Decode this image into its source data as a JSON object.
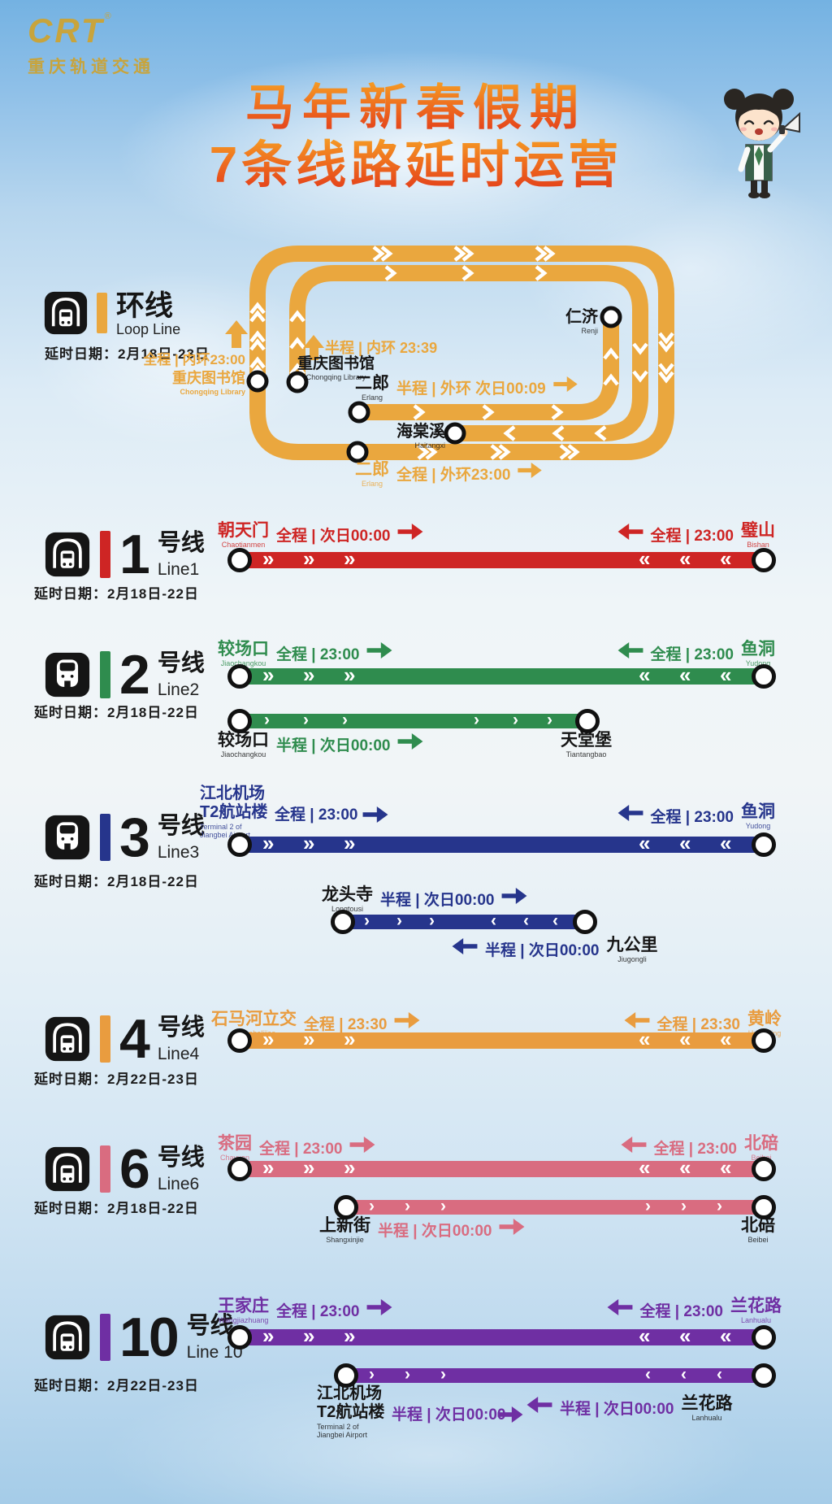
{
  "logo": {
    "brand": "CRT",
    "registered": "®",
    "subtitle": "重庆轨道交通"
  },
  "title": {
    "line1": "马年新春假期",
    "line2": "7条线路延时运营"
  },
  "loop": {
    "name": "环线",
    "name_en": "Loop Line",
    "dates": "延时日期：2月18日-23日",
    "color": "#EAA73E",
    "full_inner": {
      "service": "全程 | 内环23:00",
      "station": "重庆图书馆",
      "station_en": "Chongqing Library"
    },
    "half_inner": {
      "service": "半程 | 内环 23:39",
      "station": "重庆图书馆",
      "station_en": "Chongqing Library"
    },
    "half_outer": {
      "station": "二郎",
      "station_en": "Erlang",
      "service": "半程 | 外环 次日00:09"
    },
    "full_outer": {
      "station": "二郎",
      "station_en": "Erlang",
      "service": "全程 | 外环23:00"
    },
    "haitangxi": {
      "station": "海棠溪",
      "station_en": "Haitangxi"
    },
    "renji": {
      "station": "仁济",
      "station_en": "Renji"
    }
  },
  "lines": [
    {
      "number": "1",
      "suffix": "号线",
      "name_en": "Line1",
      "dates": "延时日期：2月18日-22日",
      "color": "#CE2524",
      "icon": "subway",
      "full": {
        "left": {
          "station": "朝天门",
          "station_en": "Chaotianmen",
          "service": "全程 | 次日00:00"
        },
        "right": {
          "service": "全程 | 23:00",
          "station": "璧山",
          "station_en": "Bishan"
        }
      }
    },
    {
      "number": "2",
      "suffix": "号线",
      "name_en": "Line2",
      "dates": "延时日期：2月18日-22日",
      "color": "#2F8C4E",
      "icon": "monorail",
      "full": {
        "left": {
          "station": "较场口",
          "station_en": "Jiaochangkou",
          "service": "全程 | 23:00"
        },
        "right": {
          "service": "全程 | 23:00",
          "station": "鱼洞",
          "station_en": "Yudong"
        }
      },
      "half": {
        "left": {
          "station": "较场口",
          "station_en": "Jiaochangkou",
          "service": "半程 | 次日00:00"
        },
        "right": {
          "station": "天堂堡",
          "station_en": "Tiantangbao"
        }
      }
    },
    {
      "number": "3",
      "suffix": "号线",
      "name_en": "Line3",
      "dates": "延时日期：2月18日-22日",
      "color": "#26358C",
      "icon": "monorail",
      "full": {
        "left": {
          "station": "江北机场",
          "station_line2": "T2航站楼",
          "station_en": "Terminal 2 of",
          "station_en2": "Jiangbei Airport",
          "service": "全程 | 23:00"
        },
        "right": {
          "service": "全程 | 23:00",
          "station": "鱼洞",
          "station_en": "Yudong"
        }
      },
      "half": {
        "left": {
          "station": "龙头寺",
          "station_en": "Longtousi",
          "service": "半程 | 次日00:00"
        },
        "right": {
          "service": "半程 | 次日00:00",
          "station": "九公里",
          "station_en": "Jiugongli"
        }
      }
    },
    {
      "number": "4",
      "suffix": "号线",
      "name_en": "Line4",
      "dates": "延时日期：2月22日-23日",
      "color": "#E99C3F",
      "icon": "subway",
      "full": {
        "left": {
          "station": "石马河立交",
          "station_en": "Shimahelijiao",
          "service": "全程 | 23:30"
        },
        "right": {
          "service": "全程 | 23:30",
          "station": "黄岭",
          "station_en": "Huangling"
        }
      }
    },
    {
      "number": "6",
      "suffix": "号线",
      "name_en": "Line6",
      "dates": "延时日期：2月18日-22日",
      "color": "#D96C80",
      "icon": "subway",
      "full": {
        "left": {
          "station": "茶园",
          "station_en": "Chayuan",
          "service": "全程 | 23:00"
        },
        "right": {
          "service": "全程 | 23:00",
          "station": "北碚",
          "station_en": "Beibei"
        }
      },
      "half": {
        "left": {
          "station": "上新街",
          "station_en": "Shangxinjie",
          "service": "半程 | 次日00:00"
        },
        "right": {
          "station": "北碚",
          "station_en": "Beibei"
        }
      }
    },
    {
      "number": "10",
      "suffix": "号线",
      "name_en": "Line 10",
      "dates": "延时日期：2月22日-23日",
      "color": "#6F2FA3",
      "icon": "subway",
      "full": {
        "left": {
          "station": "王家庄",
          "station_en": "Wangjiazhuang",
          "service": "全程 | 23:00"
        },
        "right": {
          "service": "全程 | 23:00",
          "station": "兰花路",
          "station_en": "Lanhualu"
        }
      },
      "half": {
        "left": {
          "station": "江北机场",
          "station_line2": "T2航站楼",
          "station_en": "Terminal 2 of",
          "station_en2": "Jiangbei Airport",
          "service": "半程 | 次日00:00"
        },
        "right": {
          "service": "半程 | 次日00:00",
          "station": "兰花路",
          "station_en": "Lanhualu"
        }
      }
    }
  ]
}
